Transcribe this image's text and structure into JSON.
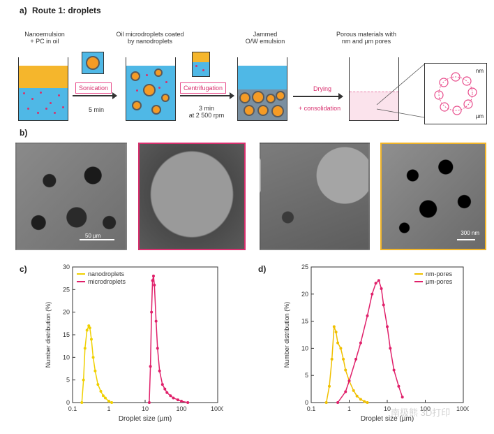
{
  "panel_a": {
    "letter": "a)",
    "title": "Route 1: droplets",
    "stage1": "Nanoemulsion\n+ PC in oil",
    "stage2": "Oil microdroplets coated\nby nanodroplets",
    "stage3": "Jammed\nO/W emulsion",
    "stage4": "Porous materials with\nnm and µm pores",
    "step1": "Sonication",
    "step1_time": "5 min",
    "step2": "Centrifugation",
    "step2_time": "3 min\nat 2 500 rpm",
    "step3_a": "Drying",
    "step3_b": "+ consolidation",
    "inset_nm": "nm",
    "inset_um": "µm"
  },
  "panel_b": {
    "letter": "b)",
    "scale1": "50 µm",
    "scale4": "300 nm",
    "colors": {
      "frame2": "#d8306e",
      "frame4": "#f0b429"
    }
  },
  "chart_data": [
    {
      "type": "line",
      "letter": "c)",
      "xlabel": "Droplet size (µm)",
      "ylabel": "Number distribution (%)",
      "xscale": "log",
      "xlim": [
        0.1,
        1000
      ],
      "ylim": [
        0,
        30
      ],
      "xticks": [
        "0.1",
        "1",
        "10",
        "100",
        "1000"
      ],
      "yticks": [
        "0",
        "5",
        "10",
        "15",
        "20",
        "25",
        "30"
      ],
      "legend": "top-left",
      "series": [
        {
          "name": "nanodroplets",
          "color": "#f0d000",
          "x": [
            0.18,
            0.2,
            0.22,
            0.25,
            0.28,
            0.3,
            0.33,
            0.37,
            0.42,
            0.5,
            0.6,
            0.7,
            0.8,
            1.0,
            1.2
          ],
          "y": [
            0,
            5,
            12,
            16,
            17,
            16.5,
            14,
            10,
            7,
            4,
            2.5,
            1.5,
            1,
            0.3,
            0
          ]
        },
        {
          "name": "microdroplets",
          "color": "#e0206a",
          "x": [
            13,
            14,
            15,
            16,
            17,
            18,
            20,
            22,
            25,
            30,
            35,
            40,
            50,
            60,
            80,
            100,
            150
          ],
          "y": [
            0,
            8,
            20,
            27,
            28,
            26,
            18,
            12,
            7,
            4,
            3,
            2.2,
            1.5,
            1,
            0.6,
            0.3,
            0
          ]
        }
      ]
    },
    {
      "type": "line",
      "letter": "d)",
      "xlabel": "Droplet size (µm)",
      "ylabel": "Number distribution (%)",
      "xscale": "log",
      "xlim": [
        0.1,
        1000
      ],
      "ylim": [
        0,
        25
      ],
      "xticks": [
        "0.1",
        "1",
        "10",
        "100",
        "1000"
      ],
      "yticks": [
        "0",
        "5",
        "10",
        "15",
        "20",
        "25"
      ],
      "legend": "top-right",
      "series": [
        {
          "name": "nm-pores",
          "color": "#f0c000",
          "x": [
            0.25,
            0.3,
            0.35,
            0.4,
            0.45,
            0.5,
            0.6,
            0.7,
            0.8,
            1.0,
            1.3,
            1.6,
            2.0,
            2.5,
            3.0
          ],
          "y": [
            0,
            3,
            8,
            14,
            13,
            11,
            10,
            8,
            6,
            4,
            2.2,
            1.2,
            0.6,
            0.2,
            0
          ]
        },
        {
          "name": "µm-pores",
          "color": "#e0206a",
          "x": [
            0.5,
            0.8,
            1.0,
            1.5,
            2.0,
            3.0,
            4.0,
            5.0,
            6.0,
            7.0,
            8.0,
            10,
            12,
            15,
            20,
            25
          ],
          "y": [
            0,
            2,
            4,
            8,
            11,
            16,
            20,
            22,
            22.5,
            21,
            18,
            14,
            10,
            6,
            3,
            1
          ]
        }
      ]
    }
  ],
  "watermark": "南极熊 3D打印"
}
